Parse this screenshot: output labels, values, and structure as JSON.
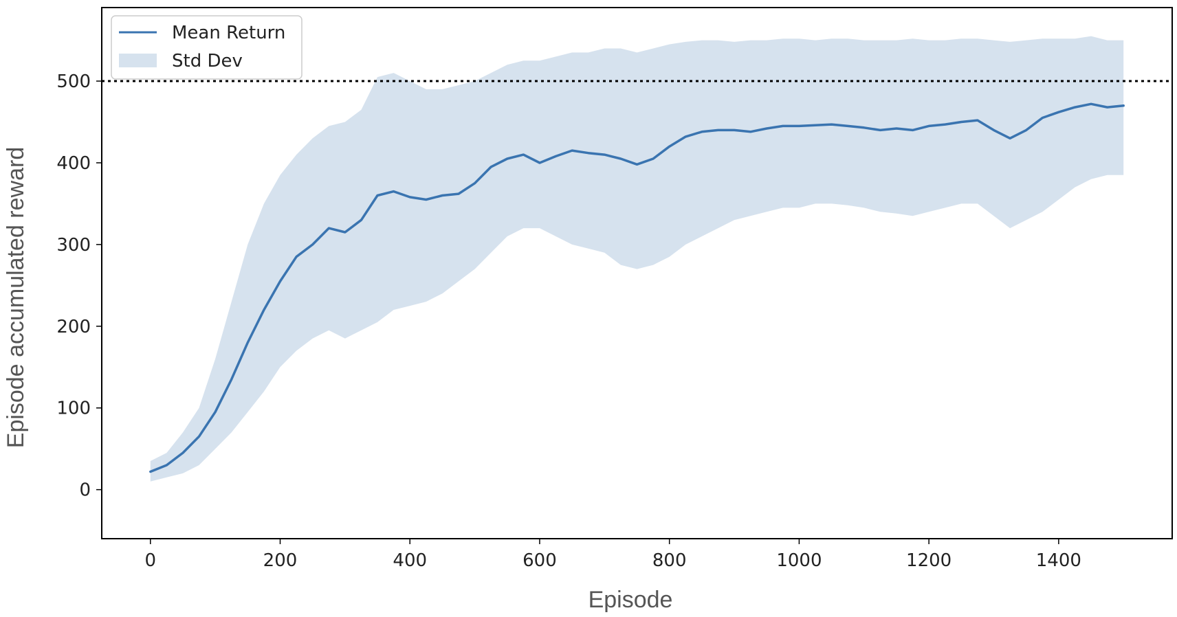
{
  "chart_data": {
    "type": "line",
    "xlabel": "Episode",
    "ylabel": "Episode accumulated reward",
    "xlim": [
      -75,
      1575
    ],
    "ylim": [
      -60,
      590
    ],
    "x_ticks": [
      0,
      200,
      400,
      600,
      800,
      1000,
      1200,
      1400
    ],
    "y_ticks": [
      0,
      100,
      200,
      300,
      400,
      500
    ],
    "grid": false,
    "legend_position": "top-left",
    "reference_line": {
      "y": 500,
      "style": "dotted",
      "color": "#000000"
    },
    "series": [
      {
        "name": "Mean Return",
        "kind": "line",
        "color": "#3a74b0",
        "x": [
          0,
          25,
          50,
          75,
          100,
          125,
          150,
          175,
          200,
          225,
          250,
          275,
          300,
          325,
          350,
          375,
          400,
          425,
          450,
          475,
          500,
          525,
          550,
          575,
          600,
          625,
          650,
          675,
          700,
          725,
          750,
          775,
          800,
          825,
          850,
          875,
          900,
          925,
          950,
          975,
          1000,
          1025,
          1050,
          1075,
          1100,
          1125,
          1150,
          1175,
          1200,
          1225,
          1250,
          1275,
          1300,
          1325,
          1350,
          1375,
          1400,
          1425,
          1450,
          1475,
          1500
        ],
        "values": [
          22,
          30,
          45,
          65,
          95,
          135,
          180,
          220,
          255,
          285,
          300,
          320,
          315,
          330,
          360,
          365,
          358,
          355,
          360,
          362,
          375,
          395,
          405,
          410,
          400,
          408,
          415,
          412,
          410,
          405,
          398,
          405,
          420,
          432,
          438,
          440,
          440,
          438,
          442,
          445,
          445,
          446,
          447,
          445,
          443,
          440,
          442,
          440,
          445,
          447,
          450,
          452,
          440,
          430,
          440,
          455,
          462,
          468,
          472,
          468,
          470
        ]
      },
      {
        "name": "Std Dev",
        "kind": "band",
        "color": "#d6e2ee",
        "x": [
          0,
          25,
          50,
          75,
          100,
          125,
          150,
          175,
          200,
          225,
          250,
          275,
          300,
          325,
          350,
          375,
          400,
          425,
          450,
          475,
          500,
          525,
          550,
          575,
          600,
          625,
          650,
          675,
          700,
          725,
          750,
          775,
          800,
          825,
          850,
          875,
          900,
          925,
          950,
          975,
          1000,
          1025,
          1050,
          1075,
          1100,
          1125,
          1150,
          1175,
          1200,
          1225,
          1250,
          1275,
          1300,
          1325,
          1350,
          1375,
          1400,
          1425,
          1450,
          1475,
          1500
        ],
        "lower": [
          10,
          15,
          20,
          30,
          50,
          70,
          95,
          120,
          150,
          170,
          185,
          195,
          185,
          195,
          205,
          220,
          225,
          230,
          240,
          255,
          270,
          290,
          310,
          320,
          320,
          310,
          300,
          295,
          290,
          275,
          270,
          275,
          285,
          300,
          310,
          320,
          330,
          335,
          340,
          345,
          345,
          350,
          350,
          348,
          345,
          340,
          338,
          335,
          340,
          345,
          350,
          350,
          335,
          320,
          330,
          340,
          355,
          370,
          380,
          385,
          385
        ],
        "upper": [
          35,
          45,
          70,
          100,
          160,
          230,
          300,
          350,
          385,
          410,
          430,
          445,
          450,
          465,
          505,
          510,
          500,
          490,
          490,
          495,
          500,
          510,
          520,
          525,
          525,
          530,
          535,
          535,
          540,
          540,
          535,
          540,
          545,
          548,
          550,
          550,
          548,
          550,
          550,
          552,
          552,
          550,
          552,
          552,
          550,
          550,
          550,
          552,
          550,
          550,
          552,
          552,
          550,
          548,
          550,
          552,
          552,
          552,
          555,
          550,
          550
        ]
      }
    ]
  }
}
